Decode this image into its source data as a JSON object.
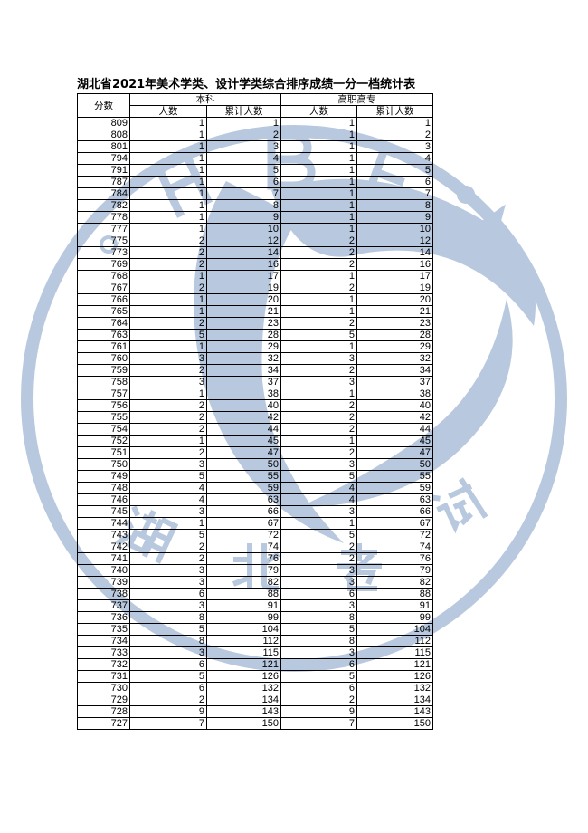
{
  "title": "湖北省2021年美术学类、设计学类综合排序成绩一分一档统计表",
  "watermark": {
    "letters": "H B E A",
    "chars": "湖北考试",
    "color": "#b8c8de"
  },
  "header": {
    "score": "分数",
    "group1": "本科",
    "group2": "高职高专",
    "count": "人数",
    "cumulative": "累计人数"
  },
  "rows": [
    [
      809,
      1,
      1,
      1,
      1
    ],
    [
      808,
      1,
      2,
      1,
      2
    ],
    [
      801,
      1,
      3,
      1,
      3
    ],
    [
      794,
      1,
      4,
      1,
      4
    ],
    [
      791,
      1,
      5,
      1,
      5
    ],
    [
      787,
      1,
      6,
      1,
      6
    ],
    [
      784,
      1,
      7,
      1,
      7
    ],
    [
      782,
      1,
      8,
      1,
      8
    ],
    [
      778,
      1,
      9,
      1,
      9
    ],
    [
      777,
      1,
      10,
      1,
      10
    ],
    [
      775,
      2,
      12,
      2,
      12
    ],
    [
      773,
      2,
      14,
      2,
      14
    ],
    [
      769,
      2,
      16,
      2,
      16
    ],
    [
      768,
      1,
      17,
      1,
      17
    ],
    [
      767,
      2,
      19,
      2,
      19
    ],
    [
      766,
      1,
      20,
      1,
      20
    ],
    [
      765,
      1,
      21,
      1,
      21
    ],
    [
      764,
      2,
      23,
      2,
      23
    ],
    [
      763,
      5,
      28,
      5,
      28
    ],
    [
      761,
      1,
      29,
      1,
      29
    ],
    [
      760,
      3,
      32,
      3,
      32
    ],
    [
      759,
      2,
      34,
      2,
      34
    ],
    [
      758,
      3,
      37,
      3,
      37
    ],
    [
      757,
      1,
      38,
      1,
      38
    ],
    [
      756,
      2,
      40,
      2,
      40
    ],
    [
      755,
      2,
      42,
      2,
      42
    ],
    [
      754,
      2,
      44,
      2,
      44
    ],
    [
      752,
      1,
      45,
      1,
      45
    ],
    [
      751,
      2,
      47,
      2,
      47
    ],
    [
      750,
      3,
      50,
      3,
      50
    ],
    [
      749,
      5,
      55,
      5,
      55
    ],
    [
      748,
      4,
      59,
      4,
      59
    ],
    [
      746,
      4,
      63,
      4,
      63
    ],
    [
      745,
      3,
      66,
      3,
      66
    ],
    [
      744,
      1,
      67,
      1,
      67
    ],
    [
      743,
      5,
      72,
      5,
      72
    ],
    [
      742,
      2,
      74,
      2,
      74
    ],
    [
      741,
      2,
      76,
      2,
      76
    ],
    [
      740,
      3,
      79,
      3,
      79
    ],
    [
      739,
      3,
      82,
      3,
      82
    ],
    [
      738,
      6,
      88,
      6,
      88
    ],
    [
      737,
      3,
      91,
      3,
      91
    ],
    [
      736,
      8,
      99,
      8,
      99
    ],
    [
      735,
      5,
      104,
      5,
      104
    ],
    [
      734,
      8,
      112,
      8,
      112
    ],
    [
      733,
      3,
      115,
      3,
      115
    ],
    [
      732,
      6,
      121,
      6,
      121
    ],
    [
      731,
      5,
      126,
      5,
      126
    ],
    [
      730,
      6,
      132,
      6,
      132
    ],
    [
      729,
      2,
      134,
      2,
      134
    ],
    [
      728,
      9,
      143,
      9,
      143
    ],
    [
      727,
      7,
      150,
      7,
      150
    ]
  ]
}
